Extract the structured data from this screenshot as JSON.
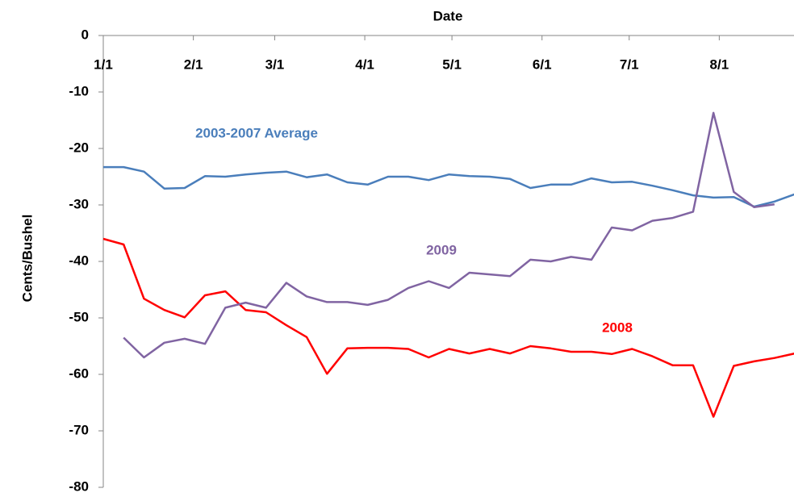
{
  "chart_data": {
    "type": "line",
    "title": "Date",
    "ylabel": "Cents/Bushel",
    "x": [
      0,
      7,
      14,
      21,
      28,
      35,
      42,
      49,
      56,
      63,
      70,
      77,
      84,
      91,
      98,
      105,
      112,
      119,
      126,
      133,
      140,
      147,
      154,
      161,
      168,
      175,
      182,
      189,
      196,
      203,
      210,
      217,
      224,
      231,
      238
    ],
    "xlim": [
      0,
      238
    ],
    "xticks": [
      {
        "value": 0,
        "label": "1/1"
      },
      {
        "value": 31,
        "label": "2/1"
      },
      {
        "value": 59,
        "label": "3/1"
      },
      {
        "value": 90,
        "label": "4/1"
      },
      {
        "value": 120,
        "label": "5/1"
      },
      {
        "value": 151,
        "label": "6/1"
      },
      {
        "value": 181,
        "label": "7/1"
      },
      {
        "value": 212,
        "label": "8/1"
      }
    ],
    "ylim": [
      -80,
      0
    ],
    "yticks": [
      0,
      -10,
      -20,
      -30,
      -40,
      -50,
      -60,
      -70,
      -80
    ],
    "grid": false,
    "series": [
      {
        "name": "2003-2007 Average",
        "color": "#4a7ebb",
        "values": [
          -23.3,
          -23.3,
          -24.1,
          -27.1,
          -27,
          -24.9,
          -25,
          -24.6,
          -24.3,
          -24.1,
          -25.1,
          -24.6,
          -26,
          -26.4,
          -25,
          -25,
          -25.6,
          -24.6,
          -24.9,
          -25,
          -25.4,
          -27,
          -26.4,
          -26.4,
          -25.3,
          -26,
          -25.9,
          -26.6,
          -27.4,
          -28.3,
          -28.7,
          -28.6,
          -30.3,
          -29.4,
          -28.1
        ]
      },
      {
        "name": "2008",
        "color": "#ff0000",
        "values": [
          -36,
          -37,
          -46.6,
          -48.6,
          -49.9,
          -46,
          -45.3,
          -48.6,
          -49,
          -51.3,
          -53.4,
          -59.9,
          -55.4,
          -55.3,
          -55.3,
          -55.5,
          -57,
          -55.5,
          -56.3,
          -55.5,
          -56.3,
          -55,
          -55.4,
          -56,
          -56,
          -56.4,
          -55.5,
          -56.8,
          -58.4,
          -58.4,
          -67.5,
          -58.5,
          -57.7,
          -57.1,
          -56.3
        ]
      },
      {
        "name": "2009",
        "color": "#8064a2",
        "values": [
          null,
          -53.5,
          -57,
          -54.4,
          -53.7,
          -54.6,
          -48.2,
          -47.3,
          -48.2,
          -43.8,
          -46.2,
          -47.2,
          -47.2,
          -47.7,
          -46.8,
          -44.7,
          -43.5,
          -44.7,
          -42,
          -42.3,
          -42.6,
          -39.7,
          -40,
          -39.2,
          -39.7,
          -34,
          -34.5,
          -32.8,
          -32.3,
          -31.2,
          -13.7,
          -27.7,
          -30.4,
          -29.9,
          null
        ]
      }
    ]
  }
}
